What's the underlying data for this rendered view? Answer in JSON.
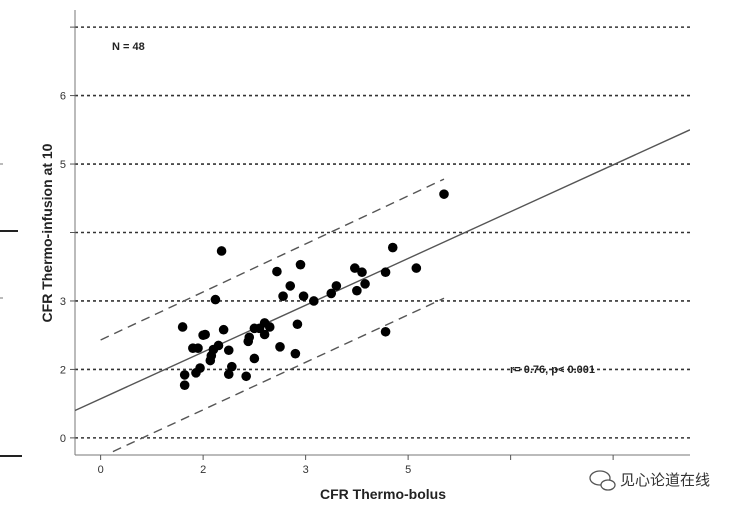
{
  "chart_data": {
    "type": "scatter",
    "title": "",
    "xlabel": "CFR Thermo-bolus",
    "ylabel": "CFR Thermo-infusion at 10",
    "xlim": [
      -0.25,
      5.75
    ],
    "ylim": [
      -0.25,
      6.25
    ],
    "x_ticks": [
      0,
      1,
      2,
      3,
      4,
      5
    ],
    "x_tick_labels": [
      "0",
      "2",
      "3",
      "5"
    ],
    "x_tick_labels_at": [
      0,
      1,
      2,
      3
    ],
    "x_tick_labels_cols": [
      0,
      1,
      2,
      3
    ],
    "y_ticks": [
      0,
      1,
      2,
      3,
      4,
      5,
      6
    ],
    "y_tick_labels": [
      "0",
      "2",
      "3",
      "5",
      "6"
    ],
    "y_tick_labels_at": [
      0,
      1,
      2,
      4,
      5
    ],
    "grid": "horizontal-dotted",
    "annotations": {
      "n": "N = 48",
      "stats": "r= 0.76, p< 0.001"
    },
    "regression_line": {
      "x0": -0.25,
      "y0": 0.4,
      "x1": 5.75,
      "y1": 4.5
    },
    "upper_limit": {
      "x0": 0.0,
      "y0": 1.43,
      "x1": 3.35,
      "y1": 3.78
    },
    "lower_limit": {
      "x0": 0.12,
      "y0": -0.2,
      "x1": 3.35,
      "y1": 2.04
    },
    "points": [
      {
        "x": 0.8,
        "y": 1.62
      },
      {
        "x": 0.82,
        "y": 0.92
      },
      {
        "x": 0.82,
        "y": 0.77
      },
      {
        "x": 0.9,
        "y": 1.31
      },
      {
        "x": 0.93,
        "y": 0.95
      },
      {
        "x": 0.95,
        "y": 1.31
      },
      {
        "x": 0.97,
        "y": 1.02
      },
      {
        "x": 1.0,
        "y": 1.5
      },
      {
        "x": 1.02,
        "y": 1.51
      },
      {
        "x": 1.07,
        "y": 1.13
      },
      {
        "x": 1.08,
        "y": 1.2
      },
      {
        "x": 1.1,
        "y": 1.29
      },
      {
        "x": 1.12,
        "y": 2.02
      },
      {
        "x": 1.15,
        "y": 1.35
      },
      {
        "x": 1.18,
        "y": 2.73
      },
      {
        "x": 1.2,
        "y": 1.58
      },
      {
        "x": 1.25,
        "y": 0.93
      },
      {
        "x": 1.25,
        "y": 1.28
      },
      {
        "x": 1.28,
        "y": 1.04
      },
      {
        "x": 1.42,
        "y": 0.9
      },
      {
        "x": 1.44,
        "y": 1.41
      },
      {
        "x": 1.45,
        "y": 1.47
      },
      {
        "x": 1.5,
        "y": 1.16
      },
      {
        "x": 1.5,
        "y": 1.6
      },
      {
        "x": 1.55,
        "y": 1.6
      },
      {
        "x": 1.6,
        "y": 1.51
      },
      {
        "x": 1.6,
        "y": 1.68
      },
      {
        "x": 1.65,
        "y": 1.62
      },
      {
        "x": 1.72,
        "y": 2.43
      },
      {
        "x": 1.75,
        "y": 1.33
      },
      {
        "x": 1.78,
        "y": 2.07
      },
      {
        "x": 1.85,
        "y": 2.22
      },
      {
        "x": 1.9,
        "y": 1.23
      },
      {
        "x": 1.92,
        "y": 1.66
      },
      {
        "x": 1.95,
        "y": 2.53
      },
      {
        "x": 1.98,
        "y": 2.07
      },
      {
        "x": 2.08,
        "y": 2.0
      },
      {
        "x": 2.25,
        "y": 2.11
      },
      {
        "x": 2.3,
        "y": 2.22
      },
      {
        "x": 2.48,
        "y": 2.48
      },
      {
        "x": 2.5,
        "y": 2.15
      },
      {
        "x": 2.55,
        "y": 2.42
      },
      {
        "x": 2.58,
        "y": 2.25
      },
      {
        "x": 2.85,
        "y": 2.78
      },
      {
        "x": 2.78,
        "y": 2.42
      },
      {
        "x": 2.78,
        "y": 1.55
      },
      {
        "x": 3.08,
        "y": 2.48
      },
      {
        "x": 3.35,
        "y": 3.56
      }
    ]
  },
  "watermark": {
    "text": "见心论道在线",
    "icon": "chat-bubble-icon"
  }
}
